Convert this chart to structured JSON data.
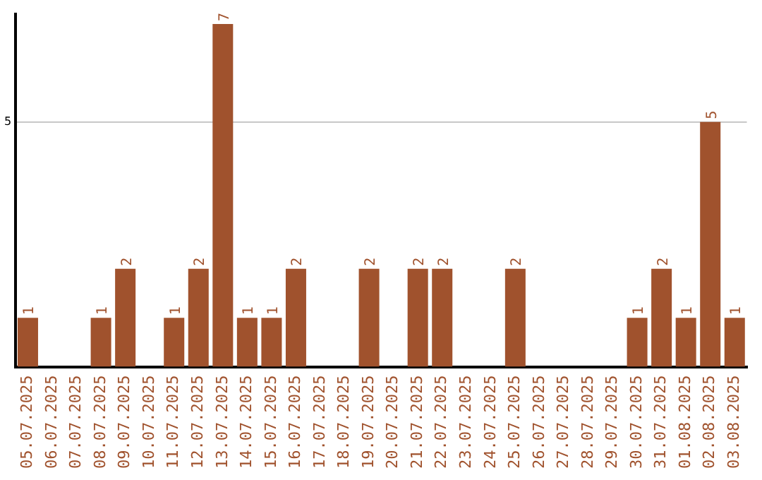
{
  "chart_data": {
    "type": "bar",
    "categories": [
      "05.07.2025",
      "06.07.2025",
      "07.07.2025",
      "08.07.2025",
      "09.07.2025",
      "10.07.2025",
      "11.07.2025",
      "12.07.2025",
      "13.07.2025",
      "14.07.2025",
      "15.07.2025",
      "16.07.2025",
      "17.07.2025",
      "18.07.2025",
      "19.07.2025",
      "20.07.2025",
      "21.07.2025",
      "22.07.2025",
      "23.07.2025",
      "24.07.2025",
      "25.07.2025",
      "26.07.2025",
      "27.07.2025",
      "28.07.2025",
      "29.07.2025",
      "30.07.2025",
      "31.07.2025",
      "01.08.2025",
      "02.08.2025",
      "03.08.2025"
    ],
    "values": [
      1,
      0,
      0,
      1,
      2,
      0,
      1,
      2,
      7,
      1,
      1,
      2,
      0,
      0,
      2,
      0,
      2,
      2,
      0,
      0,
      2,
      0,
      0,
      0,
      0,
      1,
      2,
      1,
      5,
      1
    ],
    "value_labels": [
      "1",
      null,
      null,
      "1",
      "2",
      null,
      "1",
      "2",
      "7",
      "1",
      "1",
      "2",
      null,
      null,
      "2",
      null,
      "2",
      "2",
      null,
      null,
      "2",
      null,
      null,
      null,
      null,
      "1",
      "2",
      "1",
      "5",
      "1"
    ],
    "color": "#a0522d",
    "ylim": [
      0,
      7.2
    ],
    "yticks": [
      5
    ],
    "grid": "y",
    "legend": false
  }
}
